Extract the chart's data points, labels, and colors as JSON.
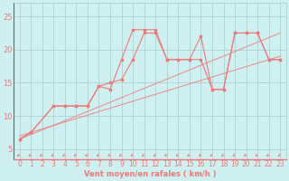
{
  "bg_color": "#cff0f0",
  "grid_color": "#aacccc",
  "line_color": "#f07878",
  "xlabel": "Vent moyen/en rafales ( km/h )",
  "ylabel_ticks": [
    5,
    10,
    15,
    20,
    25
  ],
  "xlim": [
    -0.5,
    23.5
  ],
  "ylim": [
    3.5,
    27
  ],
  "xticks": [
    0,
    1,
    2,
    3,
    4,
    5,
    6,
    7,
    8,
    9,
    10,
    11,
    12,
    13,
    14,
    15,
    16,
    17,
    18,
    19,
    20,
    21,
    22,
    23
  ],
  "line1_x": [
    0,
    1,
    3,
    4,
    5,
    6,
    7,
    8,
    9,
    10,
    11,
    12,
    13,
    14,
    15,
    16,
    17,
    18,
    19,
    20,
    21,
    22,
    23
  ],
  "line1_y": [
    6.5,
    7.5,
    11.5,
    11.5,
    11.5,
    11.5,
    14.5,
    14.0,
    18.5,
    23.0,
    23.0,
    23.0,
    18.5,
    18.5,
    18.5,
    22.0,
    14.0,
    14.0,
    22.5,
    22.5,
    22.5,
    18.5,
    18.5
  ],
  "line2_x": [
    0,
    1,
    3,
    4,
    5,
    6,
    7,
    8,
    9,
    10,
    11,
    12,
    13,
    14,
    15,
    16,
    17,
    18,
    19,
    20,
    21,
    22,
    23
  ],
  "line2_y": [
    6.5,
    7.5,
    11.5,
    11.5,
    11.5,
    11.5,
    14.5,
    15.0,
    15.5,
    18.5,
    22.5,
    22.5,
    18.5,
    18.5,
    18.5,
    18.5,
    14.0,
    14.0,
    22.5,
    22.5,
    22.5,
    18.5,
    18.5
  ],
  "trend1_x": [
    0,
    23
  ],
  "trend1_y": [
    7.0,
    19.0
  ],
  "trend2_x": [
    0,
    23
  ],
  "trend2_y": [
    6.5,
    22.5
  ],
  "label_fontsize": 6.0,
  "tick_fontsize": 5.5
}
